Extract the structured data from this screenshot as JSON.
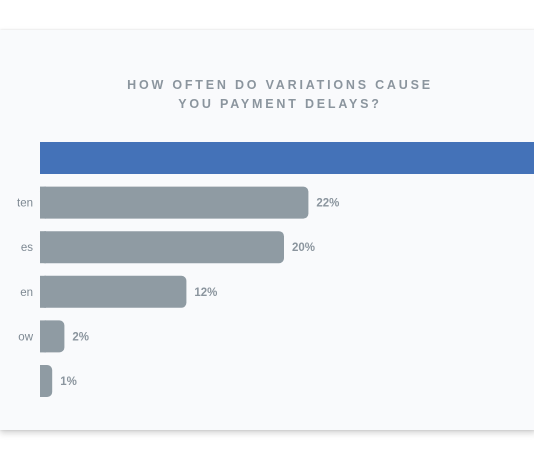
{
  "chart_data": {
    "type": "bar",
    "orientation": "horizontal",
    "title_lines": [
      "HOW OFTEN DO VARIATIONS CAUSE",
      "YOU PAYMENT DELAYS?"
    ],
    "categories": [
      "",
      "ten",
      "es",
      "en",
      "ow",
      ""
    ],
    "values": [
      null,
      22,
      20,
      12,
      2,
      1
    ],
    "value_labels": [
      "",
      "22%",
      "20%",
      "12%",
      "2%",
      "1%"
    ],
    "xlim": [
      0,
      40
    ],
    "grid": false,
    "colors": [
      "#4472b8",
      "#8f9ba3",
      "#8f9ba3",
      "#8f9ba3",
      "#8f9ba3",
      "#8f9ba3"
    ]
  }
}
